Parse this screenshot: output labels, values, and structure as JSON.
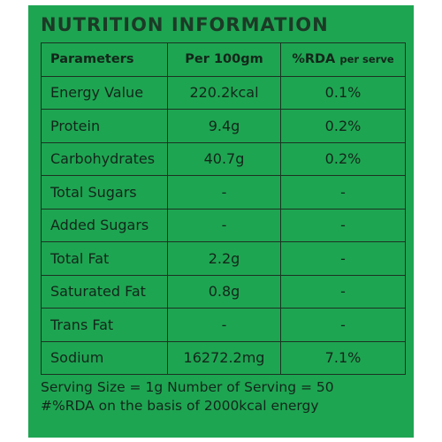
{
  "title": "NUTRITION INFORMATION",
  "table": {
    "headers": {
      "parameters": "Parameters",
      "per100": "Per 100gm",
      "rda_main": "%RDA",
      "rda_sub": "per serve"
    },
    "rows": [
      {
        "name": "Energy Value",
        "per100": "220.2kcal",
        "rda": "0.1%"
      },
      {
        "name": "Protein",
        "per100": "9.4g",
        "rda": "0.2%"
      },
      {
        "name": "Carbohydrates",
        "per100": "40.7g",
        "rda": "0.2%"
      },
      {
        "name": "Total Sugars",
        "per100": "-",
        "rda": "-"
      },
      {
        "name": "Added Sugars",
        "per100": "-",
        "rda": "-"
      },
      {
        "name": "Total Fat",
        "per100": "2.2g",
        "rda": "-"
      },
      {
        "name": "Saturated Fat",
        "per100": "0.8g",
        "rda": "-"
      },
      {
        "name": "Trans Fat",
        "per100": "-",
        "rda": "-"
      },
      {
        "name": "Sodium",
        "per100": "16272.2mg",
        "rda": "7.1%"
      }
    ]
  },
  "footer": {
    "line1": "Serving Size = 1g Number of Serving = 50",
    "line2": "#%RDA on the basis of 2000kcal energy"
  },
  "colors": {
    "panel": "#1ea552",
    "text": "#13261a",
    "border": "#1b3222"
  }
}
